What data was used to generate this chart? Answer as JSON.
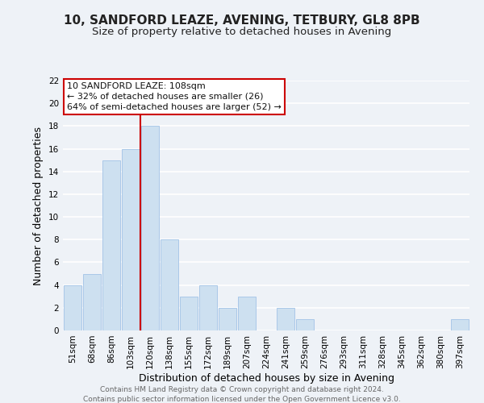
{
  "title": "10, SANDFORD LEAZE, AVENING, TETBURY, GL8 8PB",
  "subtitle": "Size of property relative to detached houses in Avening",
  "xlabel": "Distribution of detached houses by size in Avening",
  "ylabel": "Number of detached properties",
  "bar_color": "#cde0f0",
  "bar_edge_color": "#aac8e8",
  "bin_labels": [
    "51sqm",
    "68sqm",
    "86sqm",
    "103sqm",
    "120sqm",
    "138sqm",
    "155sqm",
    "172sqm",
    "189sqm",
    "207sqm",
    "224sqm",
    "241sqm",
    "259sqm",
    "276sqm",
    "293sqm",
    "311sqm",
    "328sqm",
    "345sqm",
    "362sqm",
    "380sqm",
    "397sqm"
  ],
  "bar_heights": [
    4,
    5,
    15,
    16,
    18,
    8,
    3,
    4,
    2,
    3,
    0,
    2,
    1,
    0,
    0,
    0,
    0,
    0,
    0,
    0,
    1
  ],
  "ylim": [
    0,
    22
  ],
  "yticks": [
    0,
    2,
    4,
    6,
    8,
    10,
    12,
    14,
    16,
    18,
    20,
    22
  ],
  "property_line_bin": 3,
  "property_line_color": "#cc0000",
  "annotation_line1": "10 SANDFORD LEAZE: 108sqm",
  "annotation_line2": "← 32% of detached houses are smaller (26)",
  "annotation_line3": "64% of semi-detached houses are larger (52) →",
  "footer_line1": "Contains HM Land Registry data © Crown copyright and database right 2024.",
  "footer_line2": "Contains public sector information licensed under the Open Government Licence v3.0.",
  "background_color": "#eef2f7",
  "grid_color": "#ffffff",
  "title_fontsize": 11,
  "subtitle_fontsize": 9.5,
  "axis_label_fontsize": 9,
  "tick_fontsize": 7.5,
  "annotation_fontsize": 8,
  "footer_fontsize": 6.5
}
